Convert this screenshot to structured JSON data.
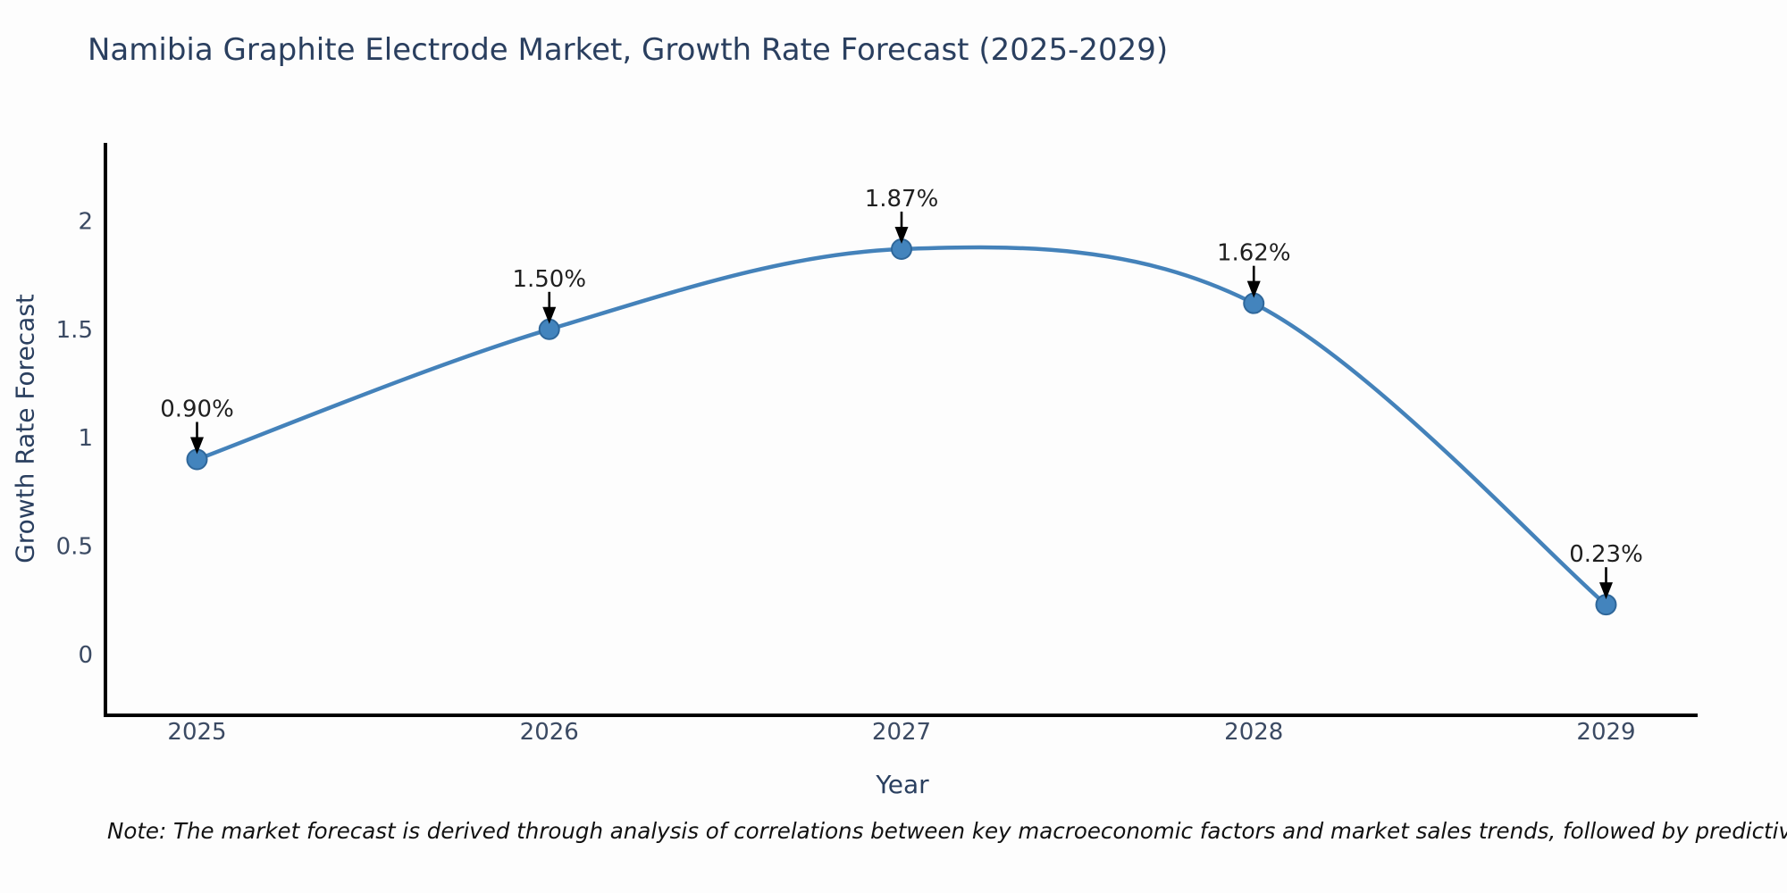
{
  "chart_data": {
    "type": "line",
    "title": "Namibia Graphite Electrode Market, Growth Rate Forecast (2025-2029)",
    "xlabel": "Year",
    "ylabel": "Growth Rate Forecast",
    "x": [
      2025,
      2026,
      2027,
      2028,
      2029
    ],
    "series": [
      {
        "name": "Growth Rate Forecast",
        "values": [
          0.9,
          1.5,
          1.87,
          1.62,
          0.23
        ],
        "point_labels": [
          "0.90%",
          "1.50%",
          "1.87%",
          "1.62%",
          "0.23%"
        ]
      }
    ],
    "x_tick_labels": [
      "2025",
      "2026",
      "2027",
      "2028",
      "2029"
    ],
    "y_tick_values": [
      0,
      0.5,
      1,
      1.5,
      2
    ],
    "y_tick_labels": [
      "0",
      "0.5",
      "1",
      "1.5",
      "2"
    ],
    "xlim": [
      2024.74,
      2029.26
    ],
    "ylim": [
      -0.28,
      2.36
    ],
    "grid": false,
    "legend": "none",
    "line_shape": "spline",
    "annotations_style": "value-above-with-down-arrow",
    "colors": {
      "line": "#4482ba",
      "marker_fill": "#4384bd",
      "marker_stroke": "#2f679a",
      "axis_line": "#000000",
      "tick_label": "#3b4a63",
      "title": "#2a3f5f",
      "annotation_text": "#1f1f1f",
      "annotation_arrow": "#000000",
      "background": "#fdfdfd"
    }
  },
  "note": {
    "text": "Note: The market forecast is derived through analysis of correlations between key macroeconomic factors and market sales trends, followed by predictive modeling to project future sales"
  }
}
